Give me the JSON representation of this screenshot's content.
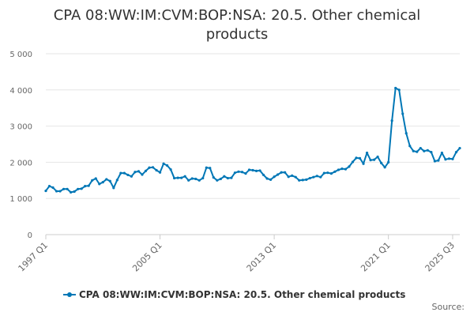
{
  "chart_data": {
    "type": "line",
    "title": "CPA 08:WW:IM:CVM:BOP:NSA: 20.5. Other chemical products",
    "xlabel": "",
    "ylabel": "",
    "ylim": [
      0,
      5000
    ],
    "yticks": [
      0,
      1000,
      2000,
      3000,
      4000,
      5000
    ],
    "ytick_labels": [
      "0",
      "1 000",
      "2 000",
      "3 000",
      "4 000",
      "5 000"
    ],
    "xtick_labels": [
      "1997 Q1",
      "2005 Q1",
      "2013 Q1",
      "2021 Q1",
      "2025 Q3"
    ],
    "xtick_positions": [
      0,
      32,
      64,
      96,
      114
    ],
    "grid": true,
    "legend_position": "bottom",
    "series": [
      {
        "name": "CPA 08:WW:IM:CVM:BOP:NSA: 20.5. Other chemical products",
        "color": "#0077b6",
        "start": "1997 Q1",
        "frequency": "quarterly",
        "values": [
          1210,
          1340,
          1300,
          1200,
          1200,
          1260,
          1260,
          1170,
          1190,
          1260,
          1270,
          1340,
          1350,
          1500,
          1550,
          1400,
          1450,
          1530,
          1480,
          1290,
          1510,
          1700,
          1700,
          1650,
          1610,
          1730,
          1750,
          1660,
          1760,
          1850,
          1860,
          1780,
          1720,
          1960,
          1910,
          1800,
          1560,
          1570,
          1570,
          1610,
          1500,
          1550,
          1540,
          1500,
          1560,
          1850,
          1840,
          1580,
          1500,
          1540,
          1610,
          1560,
          1570,
          1710,
          1740,
          1730,
          1690,
          1790,
          1780,
          1760,
          1770,
          1650,
          1550,
          1520,
          1600,
          1660,
          1720,
          1720,
          1600,
          1630,
          1590,
          1500,
          1510,
          1520,
          1560,
          1590,
          1620,
          1590,
          1700,
          1710,
          1690,
          1740,
          1790,
          1820,
          1810,
          1880,
          2010,
          2120,
          2110,
          1960,
          2260,
          2060,
          2070,
          2150,
          1980,
          1860,
          2000,
          3150,
          4050,
          4000,
          3340,
          2800,
          2450,
          2310,
          2290,
          2390,
          2310,
          2330,
          2280,
          2030,
          2050,
          2260,
          2080,
          2100,
          2090,
          2280,
          2390
        ]
      }
    ]
  },
  "legend": {
    "label": "CPA 08:WW:IM:CVM:BOP:NSA: 20.5. Other chemical products"
  },
  "footer": {
    "source_label": "Source:"
  }
}
